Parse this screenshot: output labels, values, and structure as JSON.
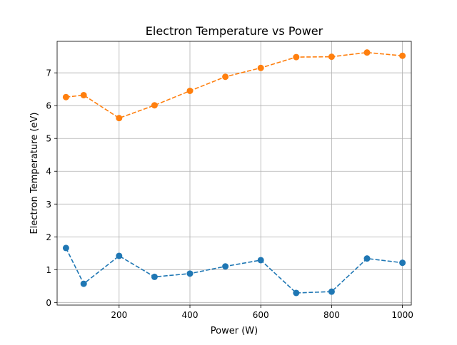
{
  "chart_data": {
    "type": "line",
    "title": "Electron Temperature vs Power",
    "xlabel": "Power (W)",
    "ylabel": "Electron Temperature (eV)",
    "xlim": [
      25,
      1025
    ],
    "ylim": [
      -0.08,
      7.96
    ],
    "xticks": [
      200,
      400,
      600,
      800,
      1000
    ],
    "yticks": [
      0,
      1,
      2,
      3,
      4,
      5,
      6,
      7
    ],
    "grid": true,
    "legend": "none",
    "x": [
      50,
      100,
      200,
      300,
      400,
      500,
      600,
      700,
      800,
      900,
      1000
    ],
    "series": [
      {
        "color": "#1f77b4",
        "line_style": "dashed",
        "marker": "circle",
        "values": [
          1.66,
          0.57,
          1.42,
          0.78,
          0.88,
          1.1,
          1.29,
          0.29,
          0.33,
          1.34,
          1.21
        ]
      },
      {
        "color": "#ff7f0e",
        "line_style": "dashed",
        "marker": "circle",
        "values": [
          6.26,
          6.32,
          5.62,
          6.01,
          6.45,
          6.88,
          7.15,
          7.48,
          7.49,
          7.62,
          7.52
        ]
      }
    ]
  }
}
